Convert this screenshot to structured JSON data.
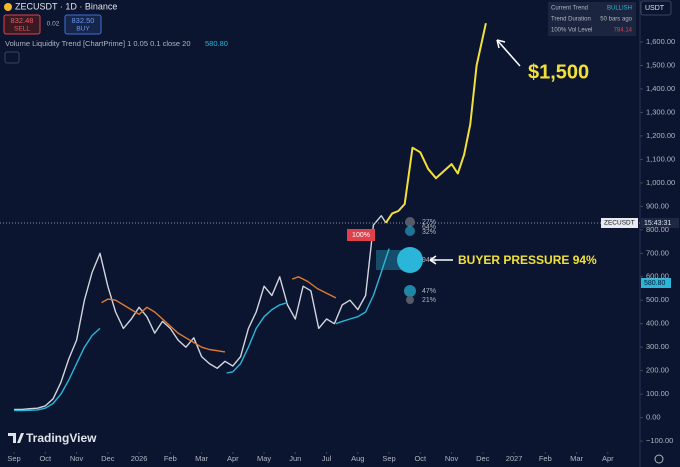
{
  "header": {
    "symbol": "ZECUSDT · 1D · Binance",
    "sell_price": "832.48",
    "sell": "SELL",
    "spread": "0.02",
    "buy_price": "832.50",
    "buy": "BUY",
    "indicator": "Volume Liquidity Trend [ChartPrime] 1 0.05 0.1 close 20",
    "indicator_value": "580.80",
    "currency": "USDT"
  },
  "info_table": {
    "rows": [
      [
        "Current Trend",
        "BULLISH"
      ],
      [
        "Trend Duration",
        "50 bars ago"
      ],
      [
        "100% Vol Level",
        "784.14"
      ]
    ]
  },
  "price_tags": {
    "symbol": "ZECUSDT",
    "countdown": "15:43:31",
    "indicator_value": "580.80"
  },
  "annotations": {
    "target": "$1,500",
    "buyer_pressure": "BUYER PRESSURE 94%",
    "level_100": "100%",
    "levels": [
      "27%",
      "64%",
      "32%",
      "94%",
      "47%",
      "21%"
    ]
  },
  "watermark": "TradingView",
  "chart_data": {
    "type": "line",
    "xlim": [
      -0.45,
      20.03
    ],
    "ylim": [
      -138,
      1779
    ],
    "xticks": [
      {
        "value": 0,
        "label": "Sep"
      },
      {
        "value": 1,
        "label": "Oct"
      },
      {
        "value": 2,
        "label": "Nov"
      },
      {
        "value": 3,
        "label": "Dec"
      },
      {
        "value": 4,
        "label": "2026"
      },
      {
        "value": 5,
        "label": "Feb"
      },
      {
        "value": 6,
        "label": "Mar"
      },
      {
        "value": 7,
        "label": "Apr"
      },
      {
        "value": 8,
        "label": "May"
      },
      {
        "value": 9,
        "label": "Jun"
      },
      {
        "value": 10,
        "label": "Jul"
      },
      {
        "value": 11,
        "label": "Aug"
      },
      {
        "value": 12,
        "label": "Sep"
      },
      {
        "value": 13,
        "label": "Oct"
      },
      {
        "value": 14,
        "label": "Nov"
      },
      {
        "value": 15,
        "label": "Dec"
      },
      {
        "value": 16,
        "label": "2027"
      },
      {
        "value": 17,
        "label": "Feb"
      },
      {
        "value": 18,
        "label": "Mar"
      },
      {
        "value": 19,
        "label": "Apr"
      }
    ],
    "yticks": [
      {
        "value": -100,
        "label": "−100.00"
      },
      {
        "value": 0,
        "label": "0.00"
      },
      {
        "value": 100,
        "label": "100.00"
      },
      {
        "value": 200,
        "label": "200.00"
      },
      {
        "value": 300,
        "label": "300.00"
      },
      {
        "value": 400,
        "label": "400.00"
      },
      {
        "value": 500,
        "label": "500.00"
      },
      {
        "value": 600,
        "label": "600.00"
      },
      {
        "value": 700,
        "label": "700.00"
      },
      {
        "value": 800,
        "label": "800.00"
      },
      {
        "value": 900,
        "label": "900.00"
      },
      {
        "value": 1000,
        "label": "1,000.00"
      },
      {
        "value": 1100,
        "label": "1,100.00"
      },
      {
        "value": 1200,
        "label": "1,200.00"
      },
      {
        "value": 1300,
        "label": "1,300.00"
      },
      {
        "value": 1400,
        "label": "1,400.00"
      },
      {
        "value": 1500,
        "label": "1,500.00"
      },
      {
        "value": 1600,
        "label": "1,600.00"
      }
    ],
    "series": [
      {
        "color": "#d1d4dc",
        "x": [
          0,
          0.25,
          0.5,
          0.75,
          1,
          1.25,
          1.5,
          1.75,
          2,
          2.25,
          2.5,
          2.75,
          3,
          3.25,
          3.5,
          3.75,
          4,
          4.25,
          4.5,
          4.75,
          5,
          5.25,
          5.5,
          5.75,
          6,
          6.25,
          6.5,
          6.75,
          7,
          7.25,
          7.5,
          7.75,
          8,
          8.25,
          8.5,
          8.75,
          9,
          9.25,
          9.5,
          9.75,
          10,
          10.25,
          10.5,
          10.75,
          11,
          11.25,
          11.5,
          11.75,
          11.9
        ],
        "values": [
          35,
          35,
          38,
          40,
          50,
          80,
          150,
          250,
          330,
          500,
          620,
          700,
          560,
          450,
          380,
          420,
          470,
          430,
          360,
          410,
          380,
          330,
          300,
          340,
          260,
          230,
          210,
          240,
          220,
          260,
          380,
          450,
          560,
          520,
          600,
          480,
          420,
          560,
          540,
          380,
          420,
          400,
          480,
          500,
          460,
          520,
          820,
          860,
          830
        ]
      },
      {
        "color": "#f2e03a",
        "x": [
          11.9,
          12.1,
          12.3,
          12.5,
          12.75,
          13,
          13.25,
          13.5,
          13.75,
          14,
          14.2,
          14.4,
          14.6,
          14.8,
          15.1
        ],
        "values": [
          830,
          870,
          880,
          910,
          1150,
          1130,
          1060,
          1020,
          1050,
          1080,
          1040,
          1120,
          1250,
          1500,
          1680
        ]
      },
      {
        "color": "#29b6d8",
        "x": [
          0,
          0.25,
          0.5,
          0.75,
          1,
          1.25,
          1.5,
          1.75,
          2,
          2.25,
          2.5,
          2.75,
          2.9,
          6.8,
          7,
          7.25,
          7.5,
          7.75,
          8,
          8.25,
          8.5,
          8.75,
          9,
          10.3,
          10.5,
          10.75,
          11,
          11.25,
          11.5,
          11.75,
          12
        ],
        "values": [
          30,
          30,
          31,
          33,
          40,
          60,
          100,
          160,
          230,
          300,
          350,
          380,
          null,
          190,
          195,
          230,
          300,
          380,
          430,
          460,
          480,
          490,
          null,
          400,
          410,
          420,
          430,
          450,
          520,
          620,
          720
        ]
      },
      {
        "color": "#e07a32",
        "x": [
          2.8,
          3,
          3.25,
          3.5,
          3.75,
          4,
          4.25,
          4.5,
          4.75,
          5,
          5.25,
          5.5,
          5.75,
          6,
          6.25,
          6.5,
          6.75,
          7,
          8.9,
          9.1,
          9.4,
          9.7,
          10,
          10.3
        ],
        "values": [
          490,
          505,
          500,
          480,
          460,
          440,
          470,
          450,
          420,
          390,
          360,
          340,
          320,
          300,
          290,
          285,
          280,
          null,
          590,
          600,
          580,
          550,
          530,
          510
        ]
      }
    ],
    "grid": false
  }
}
